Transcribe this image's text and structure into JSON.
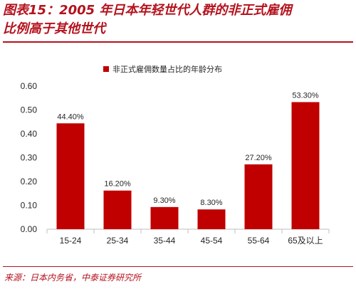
{
  "figure": {
    "title_line1": "图表15：2005 年日本年轻世代人群的非正式雇佣",
    "title_line2": "比例高于其他世代",
    "source": "来源：日本内务省，中泰证券研究所"
  },
  "colors": {
    "accent": "#b4121d",
    "bar": "#c00000",
    "axis": "#bfbfbf",
    "text": "#262626"
  },
  "chart_data": {
    "type": "bar",
    "title": "",
    "legend": {
      "label": "非正式雇佣数量占比的年龄分布",
      "position": "top"
    },
    "categories": [
      "15-24",
      "25-34",
      "35-44",
      "45-54",
      "55-64",
      "65及以上"
    ],
    "series": [
      {
        "name": "非正式雇佣数量占比的年龄分布",
        "values": [
          0.444,
          0.162,
          0.093,
          0.083,
          0.272,
          0.533
        ]
      }
    ],
    "data_labels": [
      "44.40%",
      "16.20%",
      "9.30%",
      "8.30%",
      "27.20%",
      "53.30%"
    ],
    "yticks": [
      "0.00",
      "0.10",
      "0.20",
      "0.30",
      "0.40",
      "0.50",
      "0.60"
    ],
    "ylim": [
      0,
      0.6
    ],
    "xlabel": "",
    "ylabel": "",
    "grid": false
  }
}
